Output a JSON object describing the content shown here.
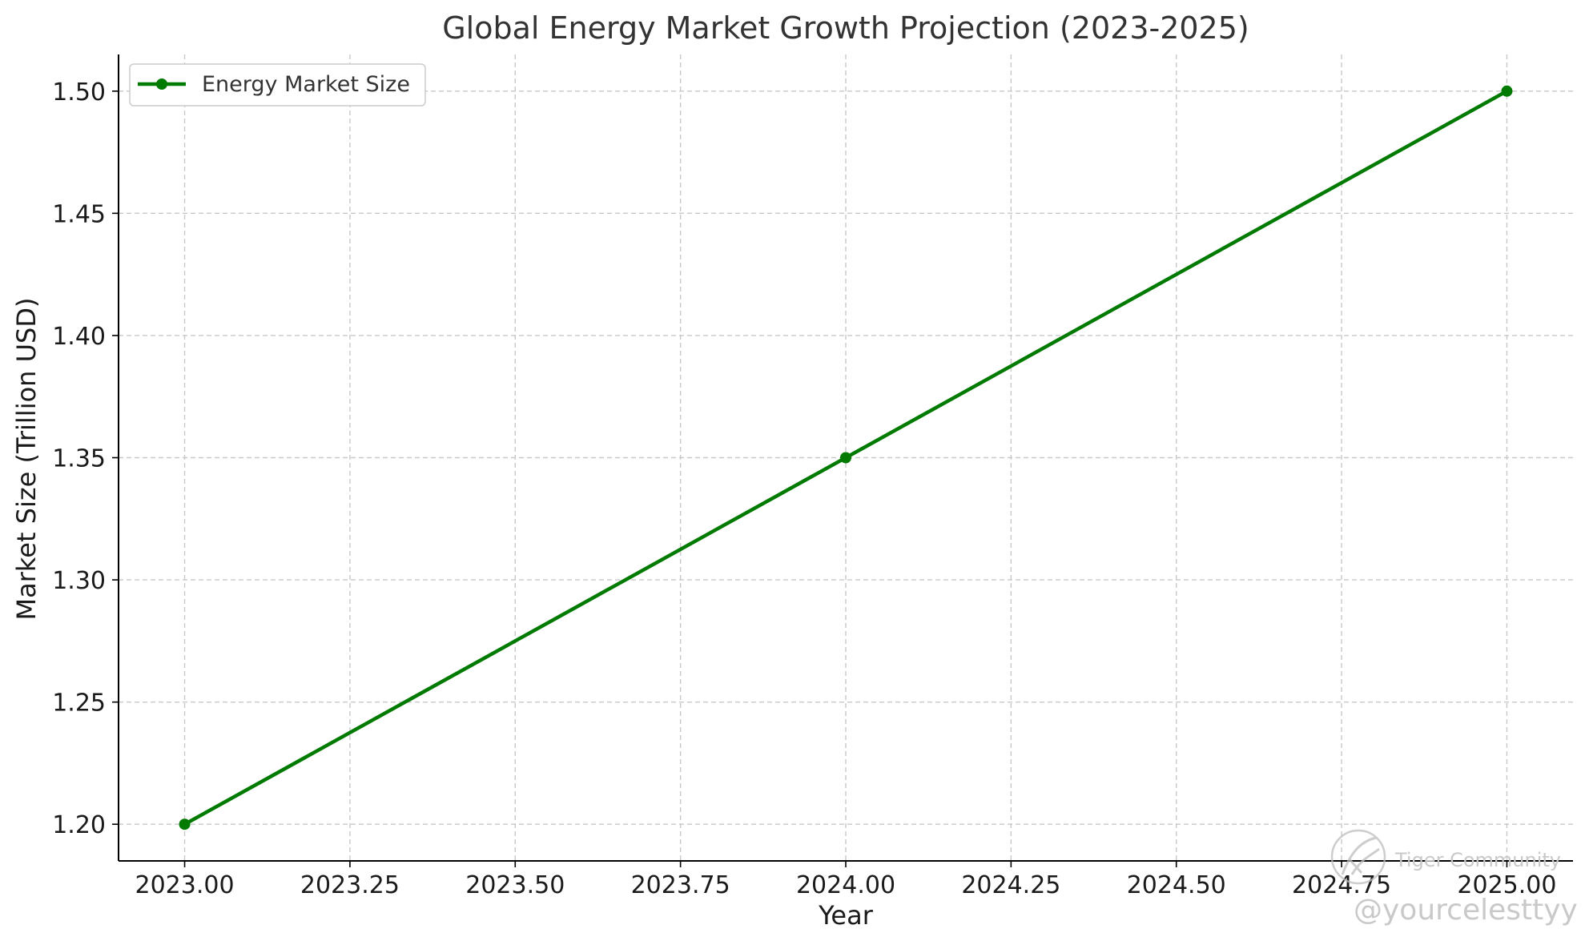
{
  "chart_data": {
    "type": "line",
    "title": "Global Energy Market Growth Projection (2023-2025)",
    "xlabel": "Year",
    "ylabel": "Market Size (Trillion USD)",
    "xlim": [
      2022.9,
      2025.1
    ],
    "ylim": [
      1.185,
      1.515
    ],
    "xticks": [
      2023.0,
      2023.25,
      2023.5,
      2023.75,
      2024.0,
      2024.25,
      2024.5,
      2024.75,
      2025.0
    ],
    "xtick_labels": [
      "2023.00",
      "2023.25",
      "2023.50",
      "2023.75",
      "2024.00",
      "2024.25",
      "2024.50",
      "2024.75",
      "2025.00"
    ],
    "yticks": [
      1.2,
      1.25,
      1.3,
      1.35,
      1.4,
      1.45,
      1.5
    ],
    "ytick_labels": [
      "1.20",
      "1.25",
      "1.30",
      "1.35",
      "1.40",
      "1.45",
      "1.50"
    ],
    "grid": true,
    "legend_position": "top-left",
    "series": [
      {
        "name": "Energy Market Size",
        "color": "#007a00",
        "marker": "circle",
        "x": [
          2023,
          2024,
          2025
        ],
        "values": [
          1.2,
          1.35,
          1.5
        ]
      }
    ]
  },
  "watermark": {
    "community": "Tiger Community",
    "handle": "@yourcelesttyy"
  }
}
